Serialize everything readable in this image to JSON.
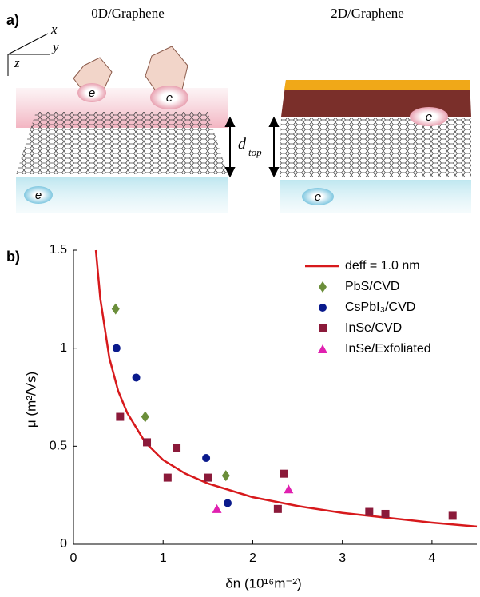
{
  "panel_a": {
    "label": "a)",
    "axes": {
      "x": "x",
      "y": "y",
      "z": "z"
    },
    "left_title": "0D/Graphene",
    "right_title": "2D/Graphene",
    "carrier_labels": [
      "e",
      "e",
      "e",
      "e",
      "e"
    ],
    "distance_label": {
      "symbol": "d",
      "subscript": "top"
    }
  },
  "chart_data": {
    "type": "scatter",
    "panel_label": "b)",
    "x_label": "δn (10¹⁶m⁻²)",
    "y_label": "μ (m²/Vs)",
    "xlim": [
      0,
      4.5
    ],
    "ylim": [
      0,
      1.5
    ],
    "xticks": [
      0,
      1,
      2,
      3,
      4
    ],
    "yticks": [
      0,
      0.5,
      1,
      1.5
    ],
    "legend": "upper right",
    "series": [
      {
        "name": "deff = 1.0 nm",
        "color": "#d7191c",
        "marker": "line",
        "x": [
          0.25,
          0.3,
          0.4,
          0.5,
          0.6,
          0.8,
          1,
          1.25,
          1.5,
          2,
          2.5,
          3,
          3.5,
          4,
          4.5
        ],
        "values": [
          1.5,
          1.25,
          0.95,
          0.78,
          0.67,
          0.52,
          0.43,
          0.36,
          0.31,
          0.24,
          0.195,
          0.16,
          0.135,
          0.11,
          0.09
        ]
      },
      {
        "name": "PbS/CVD",
        "color": "#6b8e3a",
        "marker": "diamond",
        "x": [
          0.47,
          0.8,
          1.7
        ],
        "values": [
          1.2,
          0.65,
          0.35
        ]
      },
      {
        "name": "CsPbI₃/CVD",
        "color": "#0a1a8c",
        "marker": "circle",
        "x": [
          0.48,
          0.7,
          1.48,
          1.72
        ],
        "values": [
          1.0,
          0.85,
          0.44,
          0.21
        ]
      },
      {
        "name": "InSe/CVD",
        "color": "#8b1a3a",
        "marker": "square",
        "x": [
          0.52,
          0.82,
          1.05,
          1.15,
          1.5,
          2.28,
          2.35,
          3.3,
          3.48,
          4.23
        ],
        "values": [
          0.65,
          0.52,
          0.34,
          0.49,
          0.34,
          0.18,
          0.36,
          0.165,
          0.155,
          0.145
        ]
      },
      {
        "name": "InSe/Exfoliated",
        "color": "#e020b0",
        "marker": "triangle",
        "x": [
          1.6,
          2.4
        ],
        "values": [
          0.18,
          0.28
        ]
      }
    ]
  }
}
